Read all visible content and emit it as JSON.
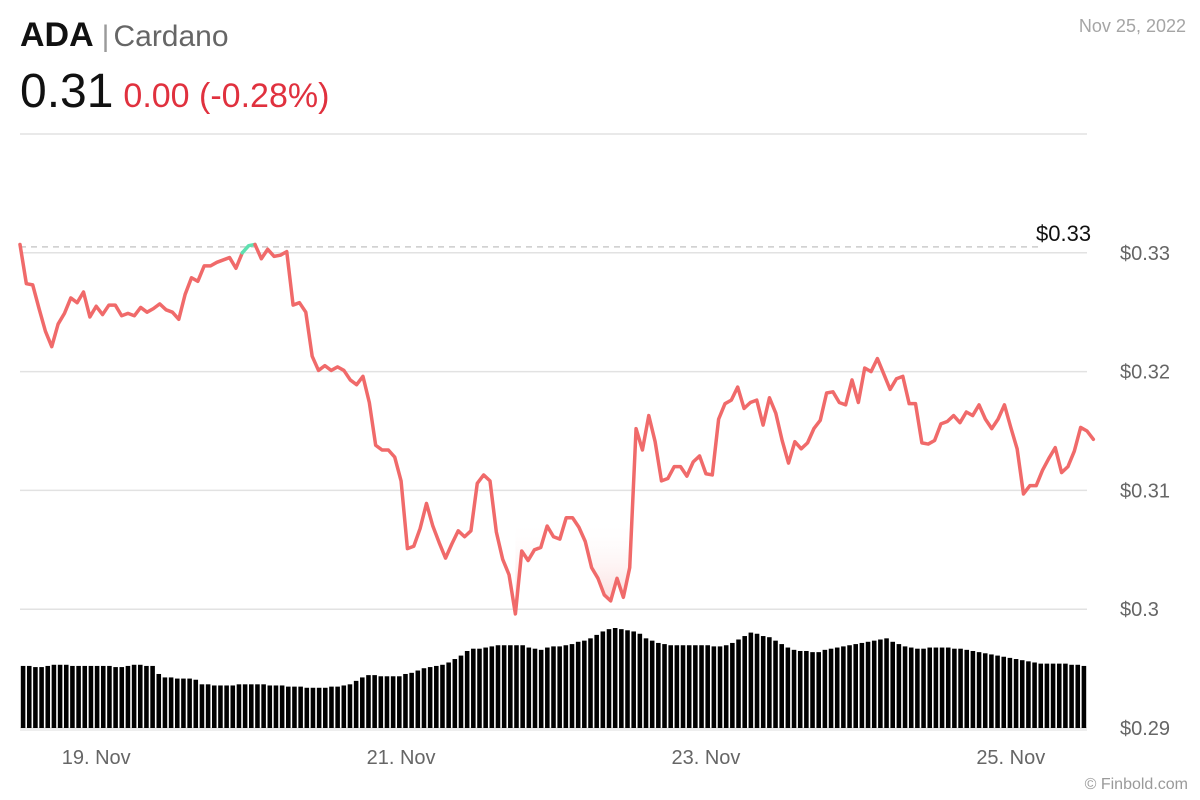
{
  "header": {
    "ticker": "ADA",
    "separator": "|",
    "name": "Cardano",
    "date": "Nov 25, 2022",
    "price": "0.31",
    "change": "0.00 (-0.28%)",
    "credit": "© Finbold.com"
  },
  "colors": {
    "down": "#f06a6a",
    "up": "#5fe0b0",
    "volume": "#000000",
    "grid": "#e2e2e2",
    "axis_text": "#666666",
    "change_text": "#e0313e"
  },
  "chart_data": {
    "type": "line",
    "price_label": "$0.33",
    "reference_level": 0.3305,
    "y_range": [
      0.29,
      0.34
    ],
    "y_ticks": [
      {
        "value": 0.33,
        "label": "$0.33"
      },
      {
        "value": 0.32,
        "label": "$0.32"
      },
      {
        "value": 0.31,
        "label": "$0.31"
      },
      {
        "value": 0.3,
        "label": "$0.3"
      },
      {
        "value": 0.29,
        "label": "$0.29"
      }
    ],
    "x_range": [
      0,
      168
    ],
    "x_ticks": [
      {
        "hour": 12,
        "label": "19. Nov"
      },
      {
        "hour": 60,
        "label": "21. Nov"
      },
      {
        "hour": 108,
        "label": "23. Nov"
      },
      {
        "hour": 156,
        "label": "25. Nov"
      }
    ],
    "grid": true,
    "series": [
      {
        "values": [
          0.3307,
          0.3274,
          0.3273,
          0.3253,
          0.3234,
          0.3221,
          0.324,
          0.3249,
          0.3262,
          0.3258,
          0.3267,
          0.3246,
          0.3255,
          0.3248,
          0.3256,
          0.3256,
          0.3247,
          0.3249,
          0.3247,
          0.3254,
          0.325,
          0.3253,
          0.3257,
          0.3252,
          0.325,
          0.3244,
          0.3265,
          0.3279,
          0.3276,
          0.3289,
          0.3289,
          0.3292,
          0.3294,
          0.3296,
          0.3287,
          0.33,
          0.3306,
          0.3307,
          0.3295,
          0.3303,
          0.3297,
          0.3298,
          0.3301,
          0.3256,
          0.3258,
          0.325,
          0.3213,
          0.3201,
          0.3205,
          0.3201,
          0.3204,
          0.3201,
          0.3193,
          0.3189,
          0.3196,
          0.3174,
          0.3138,
          0.3134,
          0.3134,
          0.3128,
          0.3108,
          0.3051,
          0.3053,
          0.3068,
          0.3089,
          0.307,
          0.3056,
          0.3043,
          0.3055,
          0.3066,
          0.3061,
          0.3066,
          0.3106,
          0.3113,
          0.3108,
          0.3065,
          0.3042,
          0.3029,
          0.2996,
          0.3049,
          0.3041,
          0.305,
          0.3052,
          0.307,
          0.3061,
          0.3059,
          0.3077,
          0.3077,
          0.3069,
          0.3057,
          0.3035,
          0.3026,
          0.3012,
          0.3007,
          0.3026,
          0.301,
          0.3035,
          0.3152,
          0.3134,
          0.3163,
          0.3141,
          0.3108,
          0.311,
          0.312,
          0.312,
          0.3112,
          0.3124,
          0.3129,
          0.3114,
          0.3113,
          0.316,
          0.3173,
          0.3176,
          0.3187,
          0.3169,
          0.3174,
          0.3176,
          0.3155,
          0.3178,
          0.3165,
          0.3142,
          0.3123,
          0.3141,
          0.3135,
          0.314,
          0.3152,
          0.3159,
          0.3182,
          0.3183,
          0.3174,
          0.3172,
          0.3193,
          0.3174,
          0.3203,
          0.32,
          0.3211,
          0.3198,
          0.3185,
          0.3194,
          0.3196,
          0.3173,
          0.3173,
          0.314,
          0.3139,
          0.3142,
          0.3156,
          0.3158,
          0.3163,
          0.3157,
          0.3166,
          0.3163,
          0.3172,
          0.316,
          0.3152,
          0.316,
          0.3172,
          0.3153,
          0.3135,
          0.3097,
          0.3104,
          0.3104,
          0.3117,
          0.3127,
          0.3136,
          0.3115,
          0.312,
          0.3133,
          0.3153,
          0.315,
          0.3143
        ]
      }
    ],
    "volume_values": [
      54,
      54,
      53,
      53,
      54,
      55,
      55,
      55,
      54,
      54,
      54,
      54,
      54,
      54,
      54,
      53,
      53,
      54,
      55,
      55,
      54,
      54,
      47,
      44,
      44,
      43,
      43,
      43,
      42,
      38,
      38,
      37,
      37,
      37,
      37,
      38,
      38,
      38,
      38,
      38,
      37,
      37,
      37,
      36,
      36,
      36,
      35,
      35,
      35,
      35,
      36,
      36,
      37,
      38,
      41,
      44,
      46,
      46,
      45,
      45,
      45,
      45,
      47,
      48,
      50,
      52,
      53,
      54,
      55,
      57,
      60,
      63,
      67,
      69,
      69,
      70,
      71,
      72,
      72,
      72,
      72,
      72,
      70,
      69,
      68,
      70,
      71,
      71,
      72,
      73,
      75,
      76,
      78,
      81,
      84,
      86,
      87,
      86,
      85,
      84,
      82,
      78,
      76,
      74,
      73,
      72,
      72,
      72,
      72,
      72,
      72,
      72,
      71,
      71,
      72,
      74,
      77,
      80,
      83,
      82,
      80,
      79,
      76,
      73,
      70,
      68,
      67,
      67,
      66,
      66,
      68,
      69,
      70,
      71,
      72,
      73,
      74,
      75,
      76,
      77,
      78,
      75,
      73,
      71,
      70,
      69,
      69,
      70,
      70,
      70,
      70,
      69,
      69,
      68,
      67,
      66,
      65,
      64,
      63,
      62,
      61,
      60,
      59,
      58,
      57,
      56,
      56,
      56,
      56,
      56,
      55,
      55,
      54
    ]
  }
}
